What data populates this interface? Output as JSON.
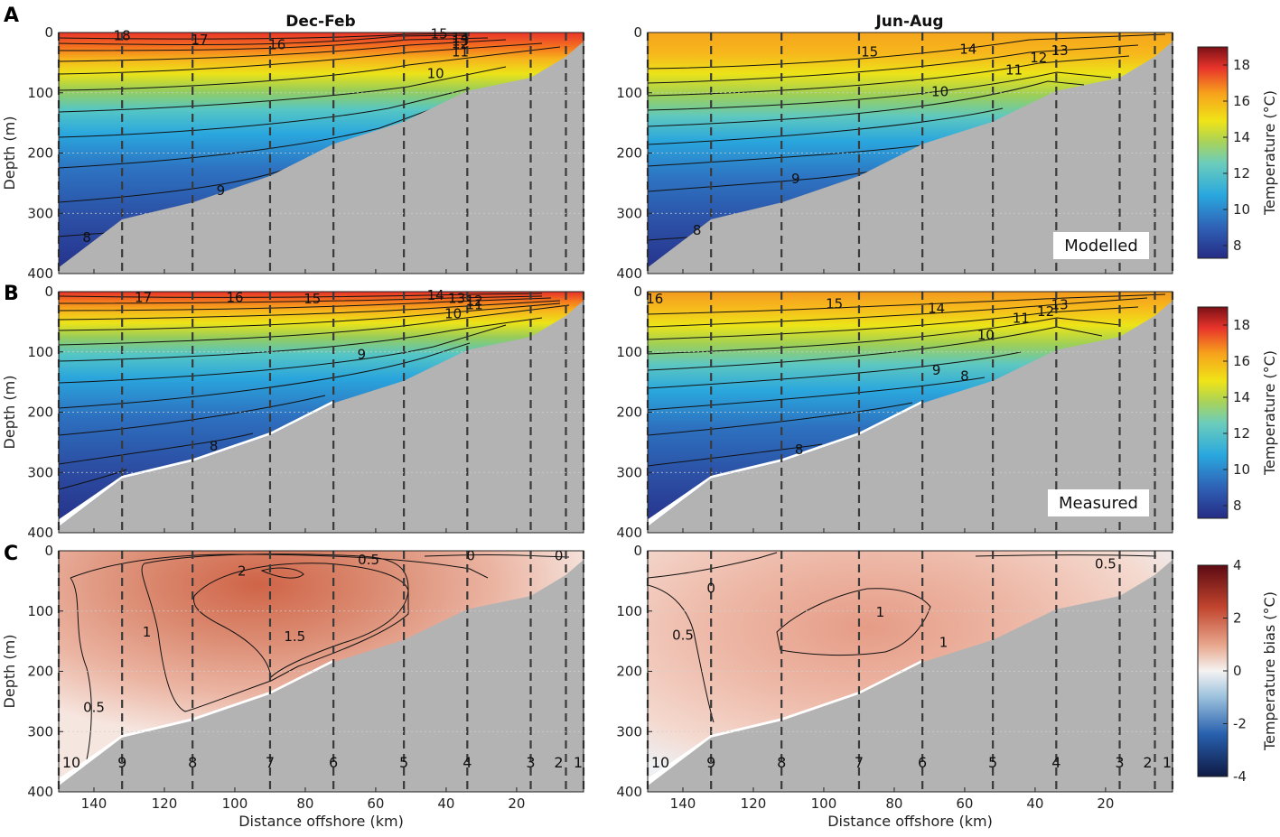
{
  "chart_data": {
    "type": "contour-section",
    "panel_labels": [
      "A",
      "B",
      "C"
    ],
    "column_titles": [
      "Dec-Feb",
      "Jun-Aug"
    ],
    "row_tags": [
      "Modelled",
      "Measured"
    ],
    "xlabel": "Distance offshore (km)",
    "ylabel": "Depth (m)",
    "xlim": [
      150,
      1
    ],
    "ylim": [
      0,
      400
    ],
    "xticks": [
      140,
      120,
      100,
      80,
      60,
      40,
      20
    ],
    "yticks": [
      0,
      100,
      200,
      300,
      400
    ],
    "stations": [
      {
        "id": "10",
        "km": 150
      },
      {
        "id": "9",
        "km": 132
      },
      {
        "id": "8",
        "km": 112
      },
      {
        "id": "7",
        "km": 90
      },
      {
        "id": "6",
        "km": 72
      },
      {
        "id": "5",
        "km": 52
      },
      {
        "id": "4",
        "km": 34
      },
      {
        "id": "3",
        "km": 16
      },
      {
        "id": "2",
        "km": 6
      },
      {
        "id": "1",
        "km": 1
      }
    ],
    "seabed_depth_m": [
      {
        "km": 150,
        "depth": 390
      },
      {
        "km": 132,
        "depth": 310
      },
      {
        "km": 112,
        "depth": 282
      },
      {
        "km": 90,
        "depth": 238
      },
      {
        "km": 72,
        "depth": 185
      },
      {
        "km": 52,
        "depth": 148
      },
      {
        "km": 34,
        "depth": 97
      },
      {
        "km": 16,
        "depth": 75
      },
      {
        "km": 6,
        "depth": 40
      },
      {
        "km": 1,
        "depth": 15
      }
    ],
    "colorbars": [
      {
        "label": "Temperature (°C)",
        "range": [
          7.3,
          19
        ],
        "ticks": [
          "8",
          "10",
          "12",
          "14",
          "16",
          "18"
        ]
      },
      {
        "label": "Temperature (°C)",
        "range": [
          7.3,
          19
        ],
        "ticks": [
          "8",
          "10",
          "12",
          "14",
          "16",
          "18"
        ]
      },
      {
        "label": "Temperature bias (°C)",
        "range": [
          -4,
          4
        ],
        "ticks": [
          "-4",
          "-2",
          "0",
          "2",
          "4"
        ]
      }
    ],
    "panels": [
      {
        "row": 0,
        "col": 0,
        "kind": "temp",
        "surface_temp": 18.8,
        "bottom_temp": 7.6,
        "contour_labels": [
          {
            "text": "18",
            "km": 132,
            "depth": 5
          },
          {
            "text": "17",
            "km": 110,
            "depth": 12
          },
          {
            "text": "16",
            "km": 88,
            "depth": 20
          },
          {
            "text": "15",
            "km": 42,
            "depth": 2
          },
          {
            "text": "14",
            "km": 36,
            "depth": 9
          },
          {
            "text": "13",
            "km": 36,
            "depth": 14
          },
          {
            "text": "12",
            "km": 36,
            "depth": 19
          },
          {
            "text": "11",
            "km": 36,
            "depth": 32
          },
          {
            "text": "10",
            "km": 43,
            "depth": 68
          },
          {
            "text": "9",
            "km": 104,
            "depth": 262
          },
          {
            "text": "8",
            "km": 142,
            "depth": 340
          }
        ]
      },
      {
        "row": 0,
        "col": 1,
        "kind": "temp",
        "surface_temp": 16.2,
        "bottom_temp": 7.8,
        "contour_labels": [
          {
            "text": "15",
            "km": 87,
            "depth": 32
          },
          {
            "text": "14",
            "km": 59,
            "depth": 28
          },
          {
            "text": "13",
            "km": 33,
            "depth": 30
          },
          {
            "text": "12",
            "km": 39,
            "depth": 42
          },
          {
            "text": "11",
            "km": 46,
            "depth": 62
          },
          {
            "text": "10",
            "km": 67,
            "depth": 98
          },
          {
            "text": "9",
            "km": 108,
            "depth": 243
          },
          {
            "text": "8",
            "km": 136,
            "depth": 328
          }
        ]
      },
      {
        "row": 1,
        "col": 0,
        "kind": "temp",
        "surface_temp": 18.3,
        "bottom_temp": 7.5,
        "contour_labels": [
          {
            "text": "17",
            "km": 126,
            "depth": 10
          },
          {
            "text": "16",
            "km": 100,
            "depth": 10
          },
          {
            "text": "15",
            "km": 78,
            "depth": 12
          },
          {
            "text": "14",
            "km": 43,
            "depth": 6
          },
          {
            "text": "13",
            "km": 37,
            "depth": 11
          },
          {
            "text": "12",
            "km": 32,
            "depth": 15
          },
          {
            "text": "11",
            "km": 32,
            "depth": 22
          },
          {
            "text": "10",
            "km": 38,
            "depth": 37
          },
          {
            "text": "9",
            "km": 64,
            "depth": 104
          },
          {
            "text": "8",
            "km": 106,
            "depth": 256
          }
        ]
      },
      {
        "row": 1,
        "col": 1,
        "kind": "temp",
        "surface_temp": 16.4,
        "bottom_temp": 7.6,
        "contour_labels": [
          {
            "text": "16",
            "km": 148,
            "depth": 12
          },
          {
            "text": "15",
            "km": 97,
            "depth": 20
          },
          {
            "text": "14",
            "km": 68,
            "depth": 28
          },
          {
            "text": "13",
            "km": 33,
            "depth": 22
          },
          {
            "text": "12",
            "km": 37,
            "depth": 33
          },
          {
            "text": "11",
            "km": 44,
            "depth": 44
          },
          {
            "text": "10",
            "km": 54,
            "depth": 72
          },
          {
            "text": "9",
            "km": 68,
            "depth": 130
          },
          {
            "text": "8",
            "km": 60,
            "depth": 140
          },
          {
            "text": "8",
            "km": 107,
            "depth": 262
          }
        ]
      },
      {
        "row": 2,
        "col": 0,
        "kind": "bias",
        "contour_labels": [
          {
            "text": "2",
            "km": 98,
            "depth": 34
          },
          {
            "text": "1.5",
            "km": 83,
            "depth": 142
          },
          {
            "text": "1",
            "km": 125,
            "depth": 135
          },
          {
            "text": "0.5",
            "km": 62,
            "depth": 15
          },
          {
            "text": "0",
            "km": 33,
            "depth": 8
          },
          {
            "text": "0",
            "km": 8,
            "depth": 8
          },
          {
            "text": "0.5",
            "km": 140,
            "depth": 260
          }
        ]
      },
      {
        "row": 2,
        "col": 1,
        "kind": "bias",
        "contour_labels": [
          {
            "text": "0",
            "km": 132,
            "depth": 62
          },
          {
            "text": "0.5",
            "km": 140,
            "depth": 140
          },
          {
            "text": "1",
            "km": 84,
            "depth": 102
          },
          {
            "text": "1",
            "km": 66,
            "depth": 152
          },
          {
            "text": "0.5",
            "km": 20,
            "depth": 22
          }
        ]
      }
    ]
  }
}
